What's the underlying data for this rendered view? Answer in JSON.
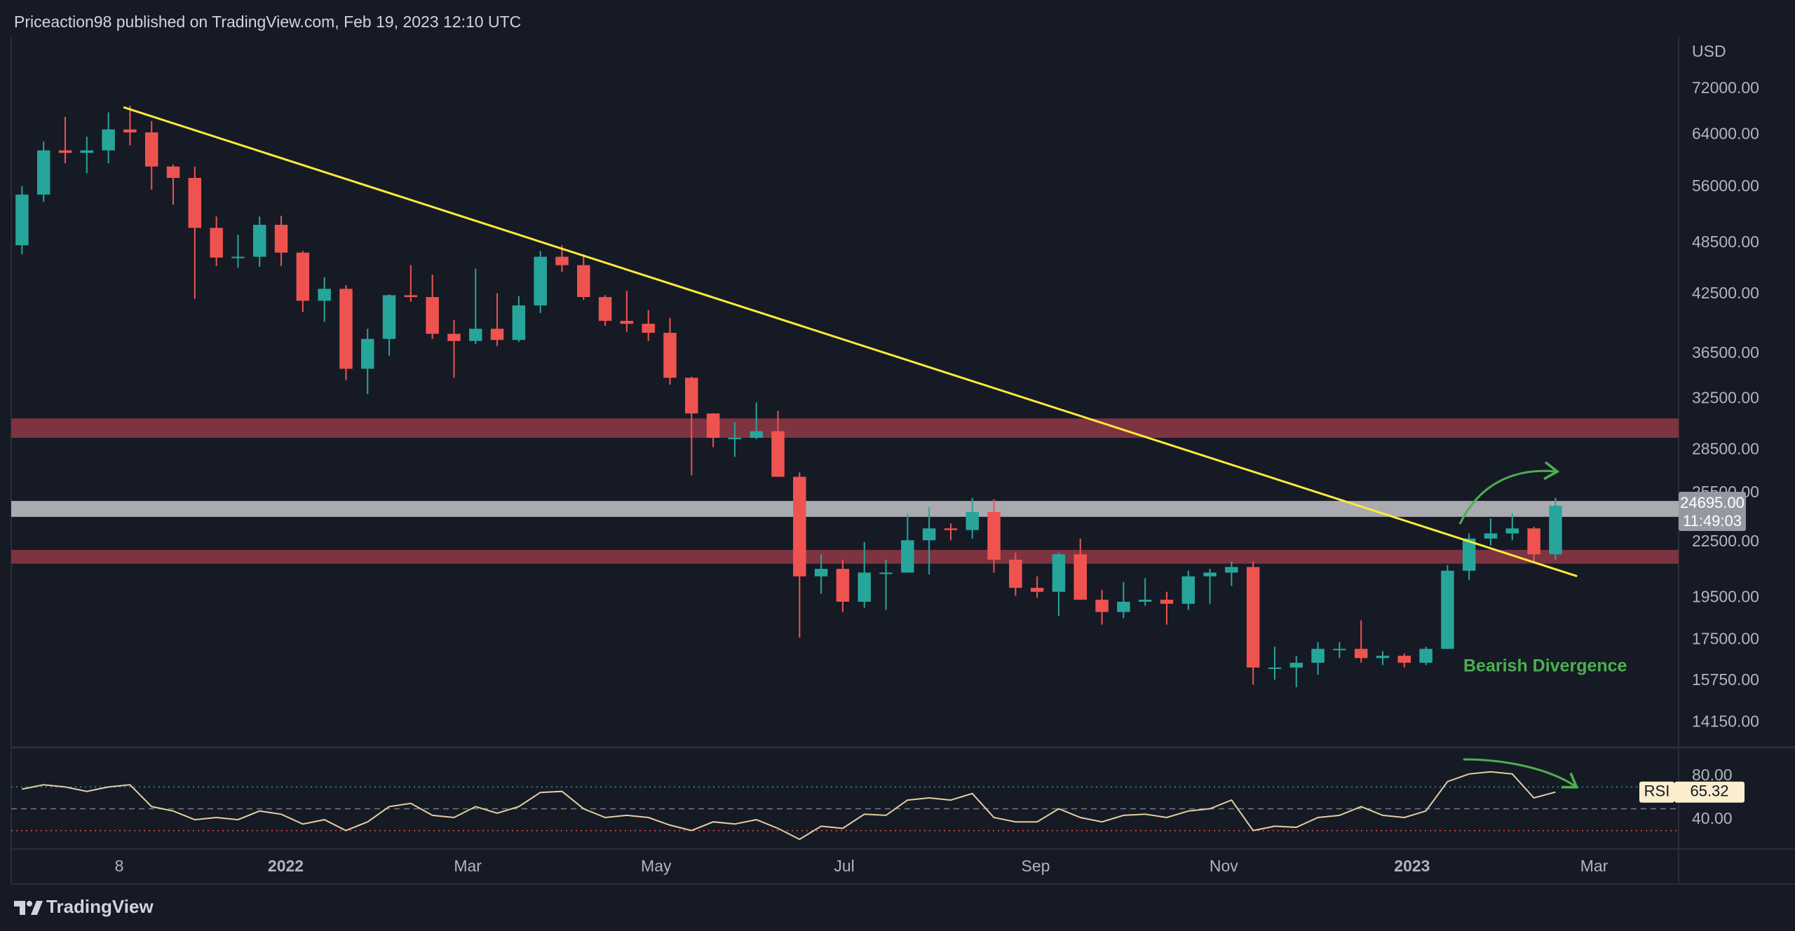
{
  "header": {
    "text": "Priceaction98 published on TradingView.com, Feb 19, 2023 12:10 UTC"
  },
  "footer": {
    "brand": "TradingView"
  },
  "chart_data": [
    {
      "type": "candlestick",
      "currency": "USD",
      "xlim": [
        0,
        77.2
      ],
      "xticks": [
        {
          "value": 5,
          "label": "8"
        },
        {
          "value": 12.71,
          "label": "2022"
        },
        {
          "value": 21.14,
          "label": "Mar"
        },
        {
          "value": 29.86,
          "label": "May"
        },
        {
          "value": 38.57,
          "label": "Jul"
        },
        {
          "value": 47.43,
          "label": "Sep"
        },
        {
          "value": 56.14,
          "label": "Nov"
        },
        {
          "value": 64.86,
          "label": "2023"
        },
        {
          "value": 73.29,
          "label": "Mar"
        }
      ],
      "ylim": [
        13300,
        82400
      ],
      "log": true,
      "yticks": [
        {
          "value": 72000,
          "label": "72000.00"
        },
        {
          "value": 64000,
          "label": "64000.00"
        },
        {
          "value": 56000,
          "label": "56000.00"
        },
        {
          "value": 48500,
          "label": "48500.00"
        },
        {
          "value": 42500,
          "label": "42500.00"
        },
        {
          "value": 36500,
          "label": "36500.00"
        },
        {
          "value": 32500,
          "label": "32500.00"
        },
        {
          "value": 28500,
          "label": "28500.00"
        },
        {
          "value": 25500,
          "label": "25500.00"
        },
        {
          "value": 22500,
          "label": "22500.00"
        },
        {
          "value": 19500,
          "label": "19500.00"
        },
        {
          "value": 17500,
          "label": "17500.00"
        },
        {
          "value": 15750,
          "label": "15750.00"
        },
        {
          "value": 14150,
          "label": "14150.00"
        }
      ],
      "up_color": "#26a69a",
      "down_color": "#ef5350",
      "open": [
        48200,
        54900,
        61500,
        61100,
        61500,
        64900,
        64400,
        59000,
        57300,
        50400,
        46700,
        46800,
        50800,
        47300,
        41800,
        43100,
        35100,
        37900,
        42400,
        42200,
        38400,
        37700,
        38900,
        37800,
        41300,
        46800,
        45800,
        42200,
        39700,
        39400,
        38500,
        34300,
        31300,
        29400,
        29400,
        29900,
        26600,
        20600,
        21000,
        19300,
        20800,
        20800,
        22600,
        23300,
        23200,
        24300,
        21500,
        20000,
        19800,
        21800,
        19400,
        18800,
        19300,
        19400,
        19200,
        20600,
        20800,
        21100,
        16300,
        16300,
        16500,
        17100,
        17100,
        16700,
        16800,
        16500,
        17100,
        20900,
        22700,
        23000,
        23300,
        21800
      ],
      "high": [
        56100,
        62900,
        67000,
        63700,
        67800,
        69000,
        66300,
        59300,
        59000,
        51900,
        49500,
        51900,
        52000,
        47500,
        44400,
        43500,
        38900,
        42500,
        45800,
        44700,
        39800,
        45400,
        42600,
        42300,
        47500,
        48200,
        47100,
        42400,
        42900,
        40800,
        40000,
        34400,
        31300,
        30600,
        32200,
        31500,
        26900,
        21800,
        21500,
        22500,
        21500,
        24200,
        24600,
        23600,
        25200,
        25100,
        21900,
        20600,
        21900,
        22700,
        19900,
        20300,
        20500,
        19800,
        20900,
        21000,
        21400,
        21400,
        17200,
        16800,
        17400,
        17400,
        18400,
        17000,
        16900,
        17200,
        21200,
        23000,
        23900,
        24200,
        23400,
        25200
      ],
      "low": [
        47100,
        53900,
        59500,
        58000,
        59500,
        62300,
        55600,
        53500,
        42000,
        45700,
        45500,
        45600,
        45700,
        40600,
        39600,
        34100,
        32900,
        36300,
        41700,
        37900,
        34300,
        37400,
        37200,
        37600,
        40500,
        45000,
        41900,
        39200,
        38600,
        37700,
        33700,
        26700,
        28700,
        28000,
        29300,
        26600,
        17600,
        19700,
        18800,
        19000,
        18900,
        20800,
        20700,
        22600,
        22700,
        20800,
        19600,
        19500,
        18600,
        19400,
        18200,
        18500,
        19100,
        18200,
        18900,
        19200,
        20100,
        15600,
        15800,
        15500,
        16000,
        16700,
        16500,
        16400,
        16300,
        16400,
        17100,
        20400,
        22300,
        22600,
        21400,
        21500
      ],
      "close": [
        54900,
        61500,
        61100,
        61500,
        64900,
        64400,
        59000,
        57300,
        50400,
        46700,
        46800,
        50800,
        47300,
        41800,
        43100,
        35100,
        37900,
        42400,
        42200,
        38400,
        37700,
        38900,
        37800,
        41300,
        46800,
        45800,
        42200,
        39700,
        39400,
        38500,
        34300,
        31300,
        29400,
        29400,
        29900,
        26600,
        20600,
        21000,
        19300,
        20800,
        20800,
        22600,
        23300,
        23200,
        24300,
        21500,
        20000,
        19800,
        21800,
        19400,
        18800,
        19300,
        19400,
        19200,
        20600,
        20800,
        21100,
        16300,
        16300,
        16500,
        17100,
        17100,
        16700,
        16800,
        16500,
        17100,
        20900,
        22700,
        23000,
        23300,
        21800,
        24695
      ],
      "zones": [
        {
          "low": 29400,
          "high": 30900,
          "color": "#7e3341"
        },
        {
          "low": 24000,
          "high": 25000,
          "color": "#a9abb0"
        },
        {
          "low": 21280,
          "high": 22050,
          "color": "#7e3341"
        }
      ],
      "trendline": {
        "x": [
          5.2,
          72.5
        ],
        "y": [
          68700,
          20608
        ],
        "color": "#ffeb3b"
      },
      "annotation": {
        "text": "Bearish Divergence",
        "color": "#4caf50"
      },
      "last_label": {
        "value": 24695,
        "label": "24695.00",
        "countdown": "11:49:03"
      }
    },
    {
      "type": "line",
      "name": "RSI",
      "color": "#e3cfa2",
      "xlim": [
        0,
        77.2
      ],
      "ylim": [
        13.7,
        105
      ],
      "yticks": [
        {
          "value": 80,
          "label": "80.00"
        },
        {
          "value": 40,
          "label": "40.00"
        }
      ],
      "levels": [
        70,
        50,
        30
      ],
      "values": [
        68,
        72,
        70,
        66,
        70,
        72,
        52,
        48,
        40,
        42,
        40,
        48,
        45,
        36,
        40,
        30,
        38,
        52,
        55,
        44,
        42,
        52,
        46,
        52,
        65,
        66,
        50,
        42,
        44,
        42,
        35,
        30,
        38,
        36,
        40,
        32,
        22,
        34,
        32,
        45,
        44,
        58,
        60,
        58,
        64,
        42,
        38,
        38,
        50,
        42,
        38,
        44,
        45,
        42,
        48,
        50,
        58,
        30,
        34,
        33,
        42,
        44,
        52,
        44,
        42,
        48,
        75,
        82,
        84,
        82,
        60,
        65.32
      ]
    }
  ]
}
